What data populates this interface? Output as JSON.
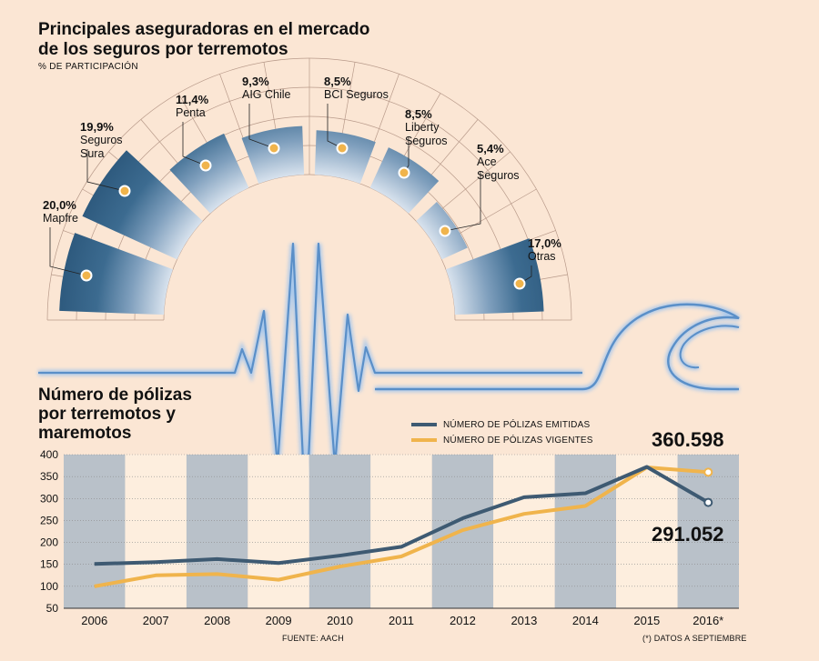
{
  "colors": {
    "background": "#fbe6d4",
    "bar_blue": "#3c6b90",
    "emitidas": "#3e5a72",
    "vigentes": "#f0b44c",
    "seismic": "#5a8fc8"
  },
  "top": {
    "title": "Principales aseguradoras en el mercado de los seguros por terremotos",
    "subtitle": "% DE PARTICIPACIÓN"
  },
  "bottom": {
    "title": "Número de pólizas por terremotos y maremotos",
    "legend_emitidas": "NÚMERO DE PÓLIZAS EMITIDAS",
    "legend_vigentes": "NÚMERO DE PÓLIZAS VIGENTES",
    "callout_vigentes": "360.598",
    "callout_emitidas": "291.052",
    "source": "FUENTE: AACH",
    "note": "(*) DATOS A SEPTIEMBRE"
  },
  "chart_data": [
    {
      "type": "bar",
      "title": "Principales aseguradoras en el mercado de los seguros por terremotos",
      "subtitle": "% DE PARTICIPACIÓN",
      "categories": [
        "Mapfre",
        "Seguros Sura",
        "Penta",
        "AIG Chile",
        "BCI Seguros",
        "Liberty Seguros",
        "Ace Seguros",
        "Otras"
      ],
      "values": [
        20.0,
        19.9,
        11.4,
        9.3,
        8.5,
        8.5,
        5.4,
        17.0
      ],
      "value_labels": [
        "20,0%",
        "19,9%",
        "11,4%",
        "9,3%",
        "8,5%",
        "8,5%",
        "5,4%",
        "17,0%"
      ],
      "label_lines": [
        [
          "Mapfre"
        ],
        [
          "Seguros",
          "Sura"
        ],
        [
          "Penta"
        ],
        [
          "AIG Chile"
        ],
        [
          "BCI Seguros"
        ],
        [
          "Liberty",
          "Seguros"
        ],
        [
          "Ace",
          "Seguros"
        ],
        [
          "Otras"
        ]
      ],
      "layout": "semicircular radial bars"
    },
    {
      "type": "line",
      "title": "Número de pólizas por terremotos y maremotos",
      "categories": [
        "2006",
        "2007",
        "2008",
        "2009",
        "2010",
        "2011",
        "2012",
        "2013",
        "2014",
        "2015",
        "2016*"
      ],
      "series": [
        {
          "name": "NÚMERO DE PÓLIZAS EMITIDAS",
          "values": [
            151,
            155,
            162,
            153,
            170,
            190,
            255,
            303,
            312,
            372,
            291
          ]
        },
        {
          "name": "NÚMERO DE PÓLIZAS VIGENTES",
          "values": [
            100,
            125,
            128,
            115,
            145,
            168,
            228,
            265,
            283,
            371,
            360
          ]
        }
      ],
      "yticks": [
        50,
        100,
        150,
        200,
        250,
        300,
        350,
        400
      ],
      "ylim": [
        50,
        400
      ],
      "grid": true,
      "legend": "top"
    }
  ]
}
